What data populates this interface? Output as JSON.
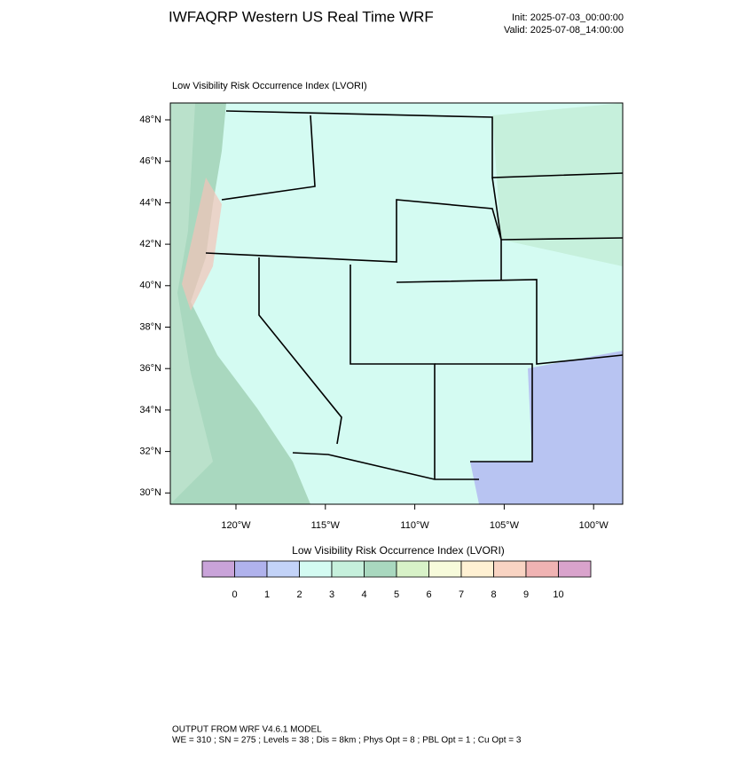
{
  "header": {
    "title": "IWFAQRP Western US Real Time WRF",
    "init": "Init: 2025-07-03_00:00:00",
    "valid": "Valid: 2025-07-08_14:00:00"
  },
  "map": {
    "title": "Low Visibility Risk Occurrence Index   (LVORI)",
    "lat_labels": [
      "48°N",
      "46°N",
      "44°N",
      "42°N",
      "40°N",
      "38°N",
      "36°N",
      "34°N",
      "32°N",
      "30°N"
    ],
    "lon_labels": [
      "120°W",
      "115°W",
      "110°W",
      "105°W",
      "100°W"
    ]
  },
  "colorbar": {
    "title": "Low Visibility Risk Occurrence Index  (LVORI)",
    "colors": [
      "#c9a3d9",
      "#b0b2ec",
      "#c3d3f8",
      "#d4fbf2",
      "#c6f0dc",
      "#a9d8bf",
      "#d8f2c8",
      "#f7fbdb",
      "#fff1d3",
      "#f9d4c3",
      "#f0b3b3",
      "#d9a3cc"
    ],
    "labels": [
      0,
      1,
      2,
      3,
      4,
      5,
      6,
      7,
      8,
      9,
      10
    ]
  },
  "footer": {
    "line1": "OUTPUT FROM WRF V4.6.1 MODEL",
    "line2": "WE = 310 ; SN = 275 ; Levels = 38 ; Dis = 8km ; Phys Opt = 8 ; PBL Opt = 1 ; Cu Opt = 3"
  }
}
